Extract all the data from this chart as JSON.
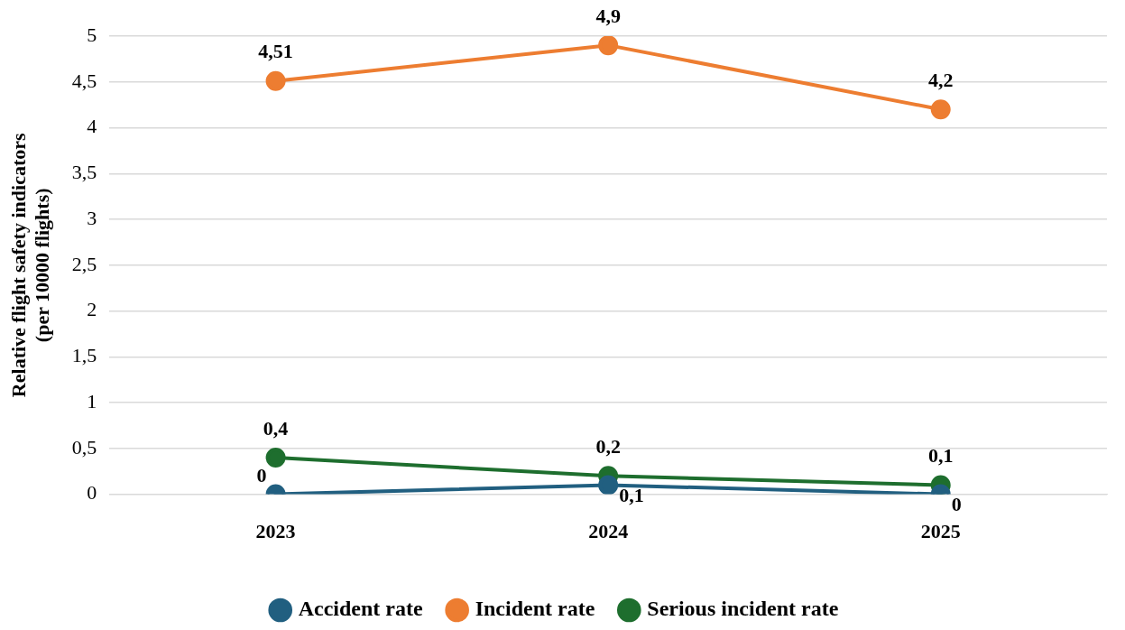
{
  "chart_data": {
    "type": "line",
    "ylabel": "Relative flight safety indicators\n(per 10000 flights)",
    "categories": [
      "2023",
      "2024",
      "2025"
    ],
    "series": [
      {
        "name": "Accident rate",
        "color": "#215f80",
        "values": [
          0,
          0.1,
          0
        ],
        "value_labels": [
          "0",
          "0,1",
          "0"
        ]
      },
      {
        "name": "Incident rate",
        "color": "#ed7d31",
        "values": [
          4.51,
          4.9,
          4.2
        ],
        "value_labels": [
          "4,51",
          "4,9",
          "4,2"
        ]
      },
      {
        "name": "Serious incident rate",
        "color": "#1e6e2e",
        "values": [
          0.4,
          0.2,
          0.1
        ],
        "value_labels": [
          "0,4",
          "0,2",
          "0,1"
        ]
      }
    ],
    "ylim": [
      0,
      5
    ],
    "yticks": [
      0,
      {
        "value": 0.5,
        "label": "0,5"
      },
      1,
      {
        "value": 1.5,
        "label": "1,5"
      },
      2,
      {
        "value": 2.5,
        "label": "2,5"
      },
      3,
      {
        "value": 3.5,
        "label": "3,5"
      },
      4,
      {
        "value": 4.5,
        "label": "4,5"
      },
      5
    ],
    "grid": "y",
    "legend": "bottom",
    "marker": "circle",
    "line_style": "solid"
  }
}
